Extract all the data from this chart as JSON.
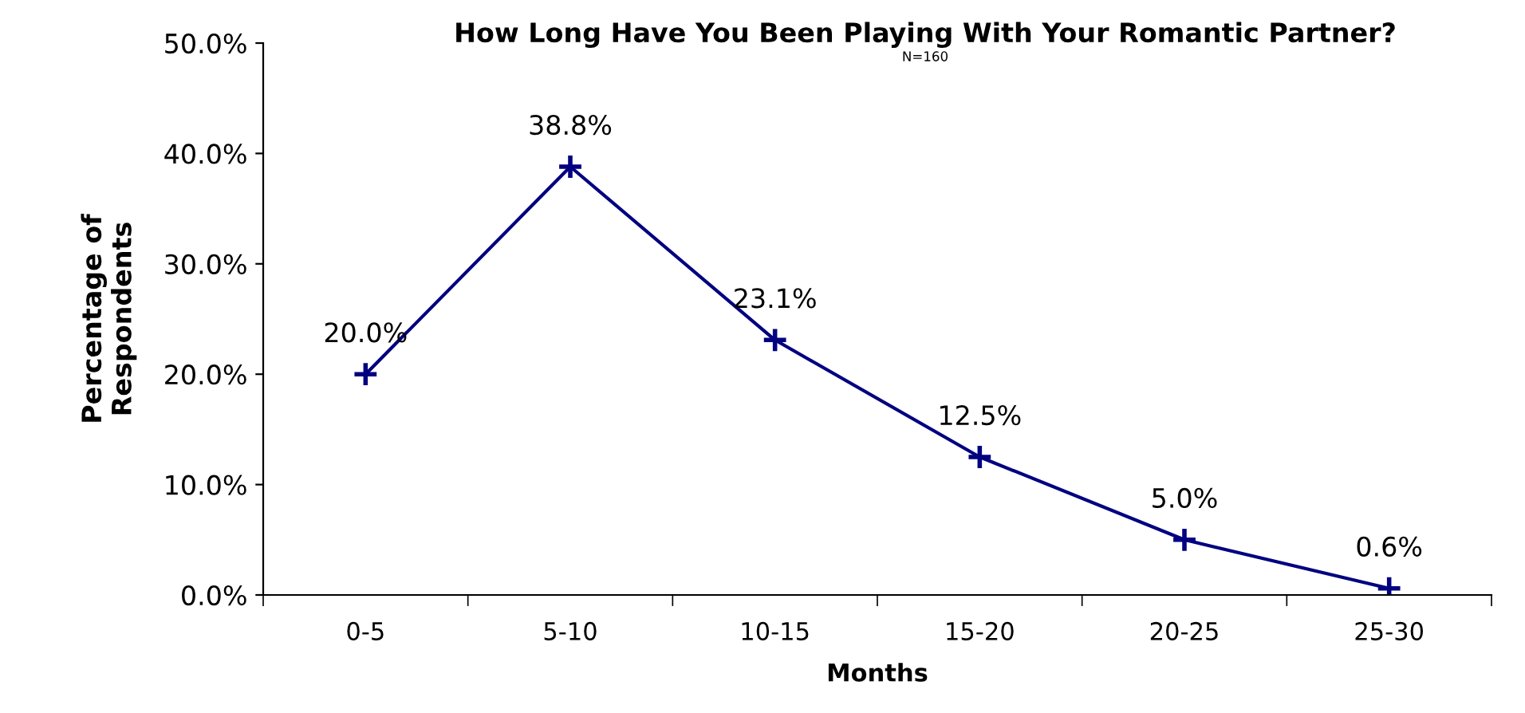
{
  "chart_data": {
    "type": "line",
    "title": "How Long Have You Been Playing With Your Romantic Partner?",
    "subtitle": "N=160",
    "xlabel": "Months",
    "ylabel": "Percentage of\nRespondents",
    "categories": [
      "0-5",
      "5-10",
      "10-15",
      "15-20",
      "20-25",
      "25-30"
    ],
    "series": [
      {
        "color": "#000080",
        "values": [
          20.0,
          38.8,
          23.1,
          12.5,
          5.0,
          0.6
        ],
        "value_labels": [
          "20.0%",
          "38.8%",
          "23.1%",
          "12.5%",
          "5.0%",
          "0.6%"
        ]
      }
    ],
    "ylim": [
      0,
      50
    ],
    "yticks": [
      {
        "value": 0,
        "label": "0.0%"
      },
      {
        "value": 10,
        "label": "10.0%"
      },
      {
        "value": 20,
        "label": "20.0%"
      },
      {
        "value": 30,
        "label": "30.0%"
      },
      {
        "value": 40,
        "label": "40.0%"
      },
      {
        "value": 50,
        "label": "50.0%"
      }
    ],
    "grid": false,
    "legend": false,
    "marker": "cross",
    "line_style": "solid"
  }
}
